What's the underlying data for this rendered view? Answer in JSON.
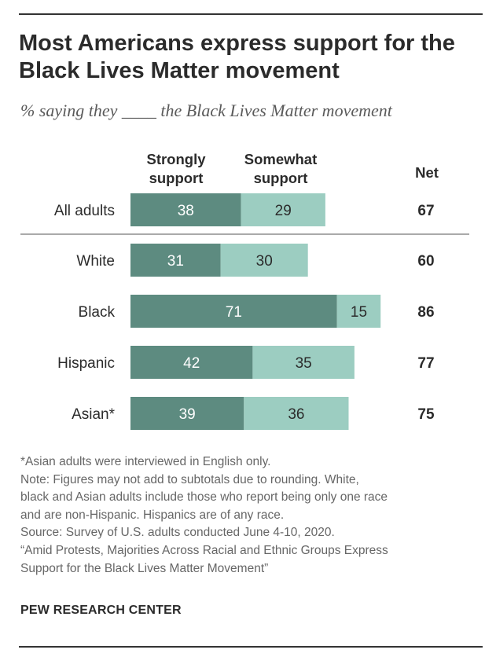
{
  "title_lines": [
    "Most Americans express support for the",
    "Black Lives Matter movement"
  ],
  "subtitle": "% saying they ____ the Black Lives Matter movement",
  "chart_data": {
    "type": "bar",
    "orientation": "horizontal",
    "stacked": true,
    "categories": [
      "All adults",
      "White",
      "Black",
      "Hispanic",
      "Asian*"
    ],
    "series": [
      {
        "name": "Strongly support",
        "values": [
          38,
          31,
          71,
          42,
          39
        ]
      },
      {
        "name": "Somewhat support",
        "values": [
          29,
          30,
          15,
          35,
          36
        ]
      }
    ],
    "series_label_lines": [
      [
        "Strongly",
        "support"
      ],
      [
        "Somewhat",
        "support"
      ]
    ],
    "net_header": "Net",
    "net": [
      67,
      60,
      86,
      77,
      75
    ],
    "colors": {
      "strongly": "#5d8b80",
      "somewhat": "#9ccdc1",
      "divider": "#aaaaaa"
    },
    "xlim": [
      0,
      100
    ],
    "grid": false
  },
  "notes": [
    "*Asian adults were interviewed in English only.",
    "Note: Figures may not add to subtotals due to rounding. White,",
    "black and Asian adults include those who report being only one race",
    "and are non-Hispanic. Hispanics are of any race.",
    "Source: Survey of U.S. adults conducted June 4-10, 2020.",
    "“Amid Protests, Majorities Across Racial and Ethnic Groups Express",
    "Support for the Black Lives Matter Movement”"
  ],
  "source_org": "PEW RESEARCH CENTER"
}
